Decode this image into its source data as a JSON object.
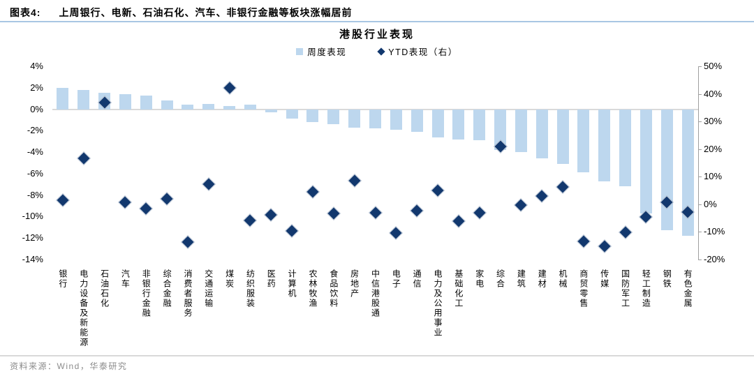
{
  "header": {
    "tag": "图表4:",
    "title": "上周银行、电新、石油石化、汽车、非银行金融等板块涨幅居前"
  },
  "footer": {
    "source": "资料来源：Wind，华泰研究"
  },
  "colors": {
    "bar_fill": "#BDD7EE",
    "marker_fill": "#12386E",
    "header_rule": "#A9C6E3",
    "footer_rule": "#D9D9D9",
    "footer_text": "#8C8C8C",
    "zero_line": "#D9D9D9",
    "axis_line": "#9E9E9E"
  },
  "chart_data": {
    "type": "bar",
    "subtype": "dual-axis bar + diamond scatter",
    "title": "港股行业表现",
    "legend": [
      {
        "label": "周度表现",
        "marker": "square-icon",
        "color": "#BDD7EE"
      },
      {
        "label": "YTD表现（右）",
        "marker": "diamond-icon",
        "color": "#12386E"
      }
    ],
    "legend_position": "top-center",
    "grid": "zero-line-only",
    "categories": [
      "银行",
      "电力设备及新能源",
      "石油石化",
      "汽车",
      "非银行金融",
      "综合金融",
      "消费者服务",
      "交通运输",
      "煤炭",
      "纺织服装",
      "医药",
      "计算机",
      "农林牧渔",
      "食品饮料",
      "房地产",
      "中信港股通",
      "电子",
      "通信",
      "电力及公用事业",
      "基础化工",
      "家电",
      "综合",
      "建筑",
      "建材",
      "机械",
      "商贸零售",
      "传媒",
      "国防军工",
      "轻工制造",
      "钢铁",
      "有色金属"
    ],
    "series": [
      {
        "name": "周度表现",
        "type": "bar",
        "axis": "left",
        "unit": "%",
        "values": [
          2.0,
          1.8,
          1.5,
          1.4,
          1.3,
          0.8,
          0.45,
          0.5,
          0.3,
          0.4,
          -0.3,
          -0.9,
          -1.2,
          -1.4,
          -1.7,
          -1.8,
          -1.9,
          -2.1,
          -2.6,
          -2.8,
          -2.9,
          -3.8,
          -4.0,
          -4.6,
          -5.1,
          -5.9,
          -6.7,
          -7.2,
          -9.7,
          -11.3,
          -11.8
        ]
      },
      {
        "name": "YTD表现（右）",
        "type": "scatter",
        "axis": "right",
        "unit": "%",
        "values": [
          1.6,
          16.6,
          36.8,
          0.6,
          -1.5,
          2.0,
          -13.6,
          7.3,
          42.2,
          -5.8,
          -3.8,
          -9.6,
          4.5,
          -3.3,
          8.6,
          -3.0,
          -10.4,
          -2.3,
          5.1,
          -6.1,
          -3.0,
          21.0,
          -0.3,
          3.1,
          6.2,
          -13.4,
          -15.1,
          -10.2,
          -4.7,
          0.8,
          -2.9
        ]
      }
    ],
    "left_axis": {
      "max": 4,
      "min": -14,
      "step": 2,
      "tick_labels": [
        "4%",
        "2%",
        "0%",
        "-2%",
        "-4%",
        "-6%",
        "-8%",
        "-10%",
        "-12%",
        "-14%"
      ]
    },
    "right_axis": {
      "max": 50,
      "min": -20,
      "step": 10,
      "tick_labels": [
        "50%",
        "40%",
        "30%",
        "20%",
        "10%",
        "0%",
        "-10%",
        "-20%"
      ]
    }
  }
}
